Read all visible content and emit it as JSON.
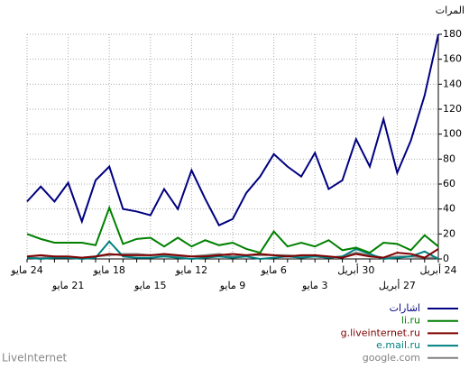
{
  "chart_data": {
    "type": "line",
    "title": "المرات",
    "categories": [
      "24 مايو",
      null,
      null,
      "21 مايو",
      null,
      null,
      "18 مايو",
      null,
      null,
      "15 مايو",
      null,
      null,
      "12 مايو",
      null,
      null,
      "9 مايو",
      null,
      null,
      "6 مايو",
      null,
      null,
      "3 مايو",
      null,
      null,
      "30 أبريل",
      null,
      null,
      "27 أبريل",
      null,
      null,
      "24 أبريل"
    ],
    "series": [
      {
        "name": "اشارات",
        "color": "#000080",
        "values": [
          46,
          58,
          46,
          61,
          30,
          63,
          74,
          40,
          38,
          35,
          56,
          40,
          71,
          48,
          27,
          32,
          53,
          66,
          84,
          74,
          66,
          85,
          56,
          63,
          96,
          74,
          112,
          69,
          95,
          131,
          180
        ]
      },
      {
        "name": "li.ru",
        "color": "#008000",
        "values": [
          20,
          16,
          13,
          13,
          13,
          11,
          41,
          12,
          16,
          17,
          10,
          17,
          10,
          15,
          11,
          13,
          8,
          5,
          22,
          10,
          13,
          10,
          15,
          7,
          9,
          5,
          13,
          12,
          7,
          19,
          10
        ]
      },
      {
        "name": "g.liveinternet.ru",
        "color": "#800000",
        "values": [
          2,
          3,
          2,
          2,
          1,
          2,
          4,
          3,
          3,
          3,
          4,
          3,
          2,
          2,
          3,
          4,
          3,
          4,
          3,
          2,
          3,
          3,
          2,
          1,
          4,
          2,
          1,
          5,
          4,
          1,
          8
        ]
      },
      {
        "name": "e.mail.ru",
        "color": "#008080",
        "values": [
          1,
          0,
          1,
          1,
          0,
          1,
          14,
          2,
          1,
          1,
          2,
          1,
          0,
          1,
          2,
          1,
          2,
          0,
          1,
          2,
          1,
          2,
          1,
          2,
          8,
          4,
          0,
          1,
          2,
          6,
          0
        ]
      },
      {
        "name": "google.com",
        "color": "#808080",
        "values": [
          1,
          1,
          2,
          1,
          1,
          2,
          3,
          4,
          4,
          3,
          3,
          2,
          2,
          3,
          4,
          2,
          3,
          3,
          3,
          3,
          2,
          2,
          1,
          2,
          5,
          3,
          1,
          2,
          2,
          1,
          1
        ]
      }
    ],
    "ylim": [
      0,
      180
    ],
    "yticks": [
      0,
      20,
      40,
      60,
      80,
      100,
      120,
      140,
      160,
      180
    ],
    "grid": true
  },
  "footer": "LiveInternet"
}
